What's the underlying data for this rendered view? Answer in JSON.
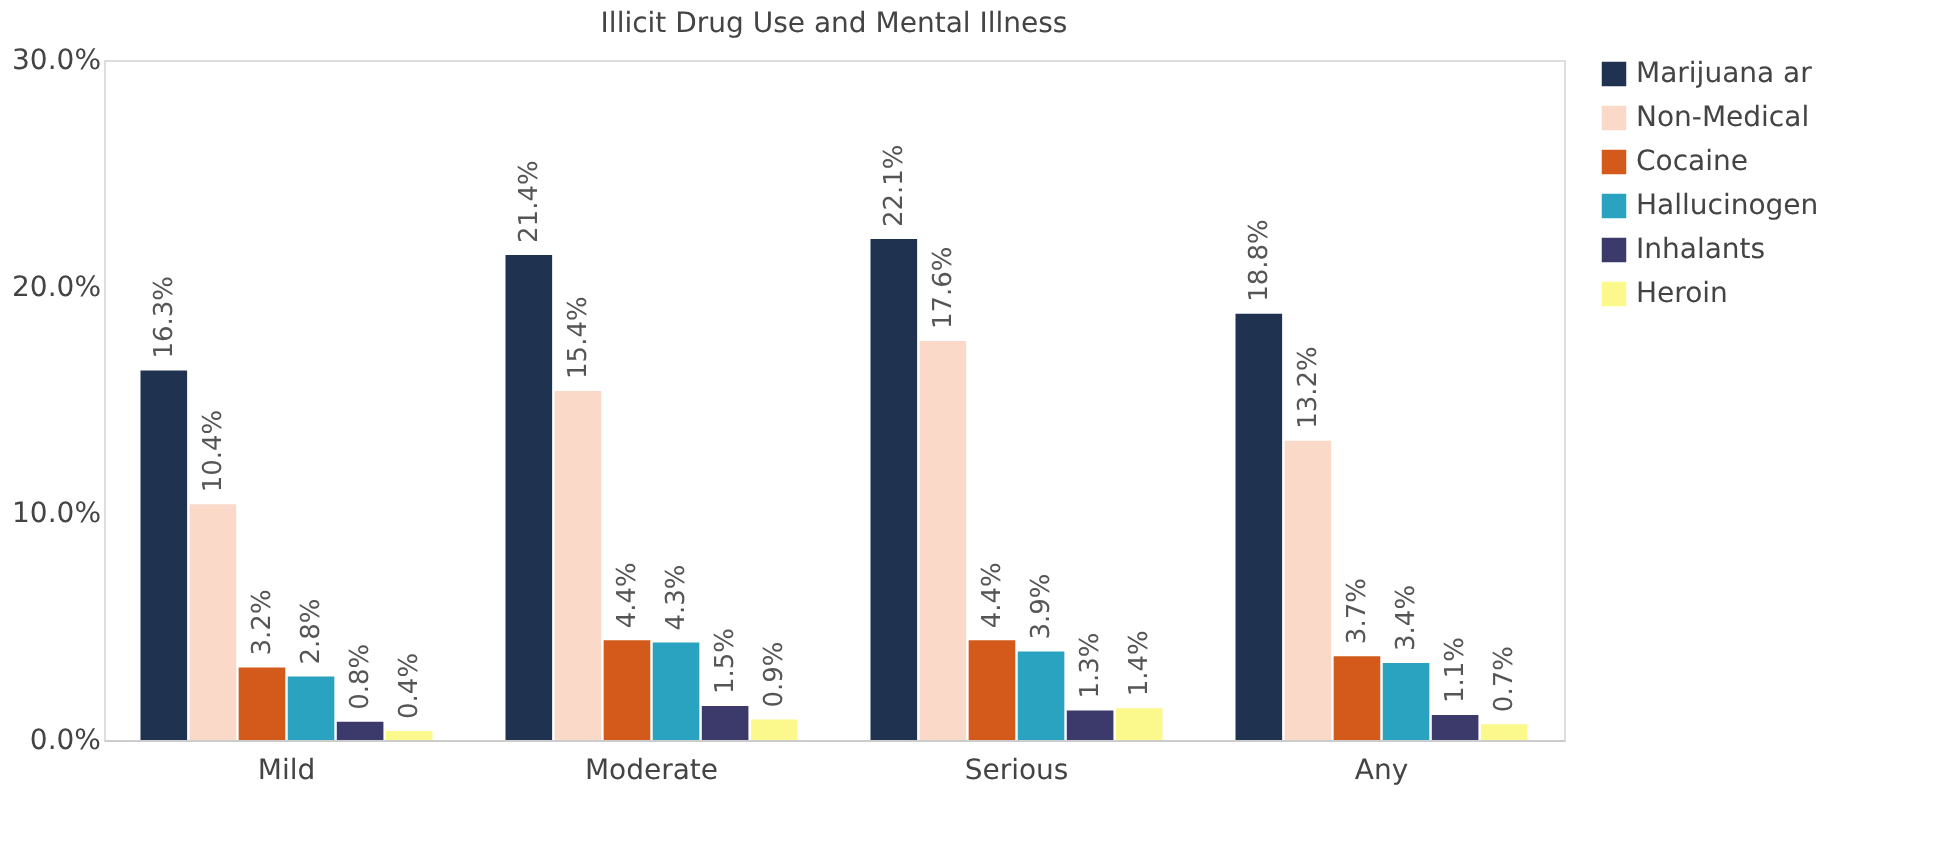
{
  "chart_data": {
    "type": "bar",
    "title": "Illicit Drug Use and Mental Illness",
    "categories": [
      "Mild",
      "Moderate",
      "Serious",
      "Any"
    ],
    "series": [
      {
        "name": "Marijuana ar",
        "color": "#1f3350",
        "values": [
          16.3,
          21.4,
          22.1,
          18.8
        ],
        "value_labels": [
          "16.3%",
          "21.4%",
          "22.1%",
          "18.8%"
        ]
      },
      {
        "name": "Non-Medical",
        "color": "#fad9c8",
        "values": [
          10.4,
          15.4,
          17.6,
          13.2
        ],
        "value_labels": [
          "10.4%",
          "15.4%",
          "17.6%",
          "13.2%"
        ]
      },
      {
        "name": "Cocaine",
        "color": "#d35a1a",
        "values": [
          3.2,
          4.4,
          4.4,
          3.7
        ],
        "value_labels": [
          "3.2%",
          "4.4%",
          "4.4%",
          "3.7%"
        ]
      },
      {
        "name": "Hallucinogen",
        "color": "#2aa3c0",
        "values": [
          2.8,
          4.3,
          3.9,
          3.4
        ],
        "value_labels": [
          "2.8%",
          "4.3%",
          "3.9%",
          "3.4%"
        ]
      },
      {
        "name": "Inhalants",
        "color": "#3b3a6b",
        "values": [
          0.8,
          1.5,
          1.3,
          1.1
        ],
        "value_labels": [
          "0.8%",
          "1.5%",
          "1.3%",
          "1.1%"
        ]
      },
      {
        "name": "Heroin",
        "color": "#fbf98c",
        "values": [
          0.4,
          0.9,
          1.4,
          0.7
        ],
        "value_labels": [
          "0.4%",
          "0.9%",
          "1.4%",
          "0.7%"
        ]
      }
    ],
    "ylim": [
      0,
      30
    ],
    "yticks": [
      {
        "value": 0,
        "label": "0.0%"
      },
      {
        "value": 10,
        "label": "10.0%"
      },
      {
        "value": 20,
        "label": "20.0%"
      },
      {
        "value": 30,
        "label": "30.0%"
      }
    ],
    "grid": false,
    "legend": "top right"
  }
}
